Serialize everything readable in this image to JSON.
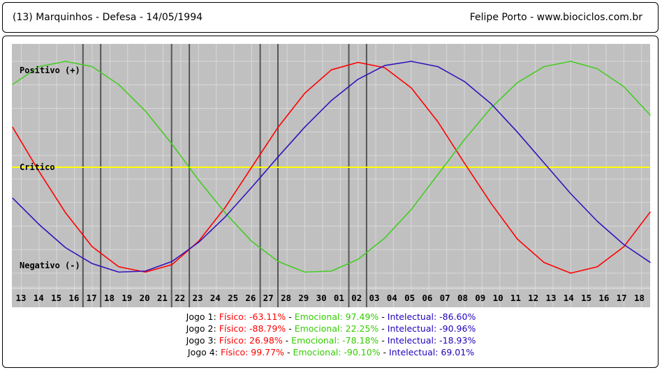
{
  "header": {
    "left": "(13)  Marquinhos - Defesa -  14/05/1994",
    "right": "Felipe Porto   -   www.biociclos.com.br"
  },
  "colors": {
    "background": "#c0c0c0",
    "grid": "#d8d8d8",
    "fisico": "#ff0000",
    "emocional": "#44cc22",
    "intelectual": "#3311bb",
    "critico": "#ffff00",
    "game_marker": "#555555"
  },
  "chart_data": {
    "type": "line",
    "level_labels": {
      "positive": "Positivo (+)",
      "critical": "Critico",
      "negative": "Negativo (-)"
    },
    "x_ticks": [
      "13",
      "14",
      "15",
      "16",
      "17",
      "18",
      "19",
      "20",
      "21",
      "22",
      "23",
      "24",
      "25",
      "26",
      "27",
      "28",
      "29",
      "30",
      "01",
      "02",
      "03",
      "04",
      "05",
      "06",
      "07",
      "08",
      "09",
      "10",
      "11",
      "12",
      "13",
      "14",
      "15",
      "16",
      "17",
      "18"
    ],
    "ylim": [
      -100,
      100
    ],
    "grid": true,
    "series": [
      {
        "key": "fisico",
        "period": 23,
        "values": [
          38.0,
          -4.0,
          -43.0,
          -75.0,
          -94.0,
          -99.0,
          -92.0,
          -70.0,
          -38.0,
          0.0,
          38.0,
          70.0,
          92.0,
          99.0,
          94.0,
          75.0,
          43.0,
          4.0,
          -34.0,
          -68.0,
          -90.0,
          -100.0,
          -94.0,
          -75.0,
          -42.0
        ]
      },
      {
        "key": "emocional",
        "period": 28,
        "values": [
          78.0,
          95.0,
          100.0,
          95.0,
          78.0,
          53.0,
          22.0,
          -12.0,
          -43.0,
          -70.0,
          -89.0,
          -99.0,
          -98.0,
          -87.0,
          -67.0,
          -40.0,
          -7.0,
          26.0,
          56.0,
          80.0,
          95.0,
          100.0,
          93.0,
          76.0,
          49.0
        ]
      },
      {
        "key": "intelectual",
        "period": 33,
        "values": [
          -29.0,
          -54.0,
          -76.0,
          -91.0,
          -99.0,
          -98.0,
          -89.0,
          -71.0,
          -47.0,
          -19.0,
          10.0,
          38.0,
          63.0,
          83.0,
          96.0,
          100.0,
          95.0,
          81.0,
          60.0,
          33.0,
          4.0,
          -25.0,
          -51.0,
          -73.0,
          -90.0
        ]
      }
    ],
    "game_markers": [
      {
        "game": 1,
        "days": [
          4,
          5
        ]
      },
      {
        "game": 2,
        "days": [
          9,
          10
        ]
      },
      {
        "game": 3,
        "days": [
          14,
          15
        ]
      },
      {
        "game": 4,
        "days": [
          19,
          20
        ]
      }
    ],
    "games": [
      {
        "label": "Jogo 1:",
        "fisico": "Físico: -63.11%",
        "emocional": "Emocional: 97.49%",
        "intelectual": "Intelectual: -86.60%"
      },
      {
        "label": "Jogo 2:",
        "fisico": "Físico: -88.79%",
        "emocional": "Emocional: 22.25%",
        "intelectual": "Intelectual: -90.96%"
      },
      {
        "label": "Jogo 3:",
        "fisico": "Físico: 26.98%",
        "emocional": "Emocional: -78.18%",
        "intelectual": "Intelectual: -18.93%"
      },
      {
        "label": "Jogo 4:",
        "fisico": "Físico: 99.77%",
        "emocional": "Emocional: -90.10%",
        "intelectual": "Intelectual: 69.01%"
      }
    ]
  }
}
